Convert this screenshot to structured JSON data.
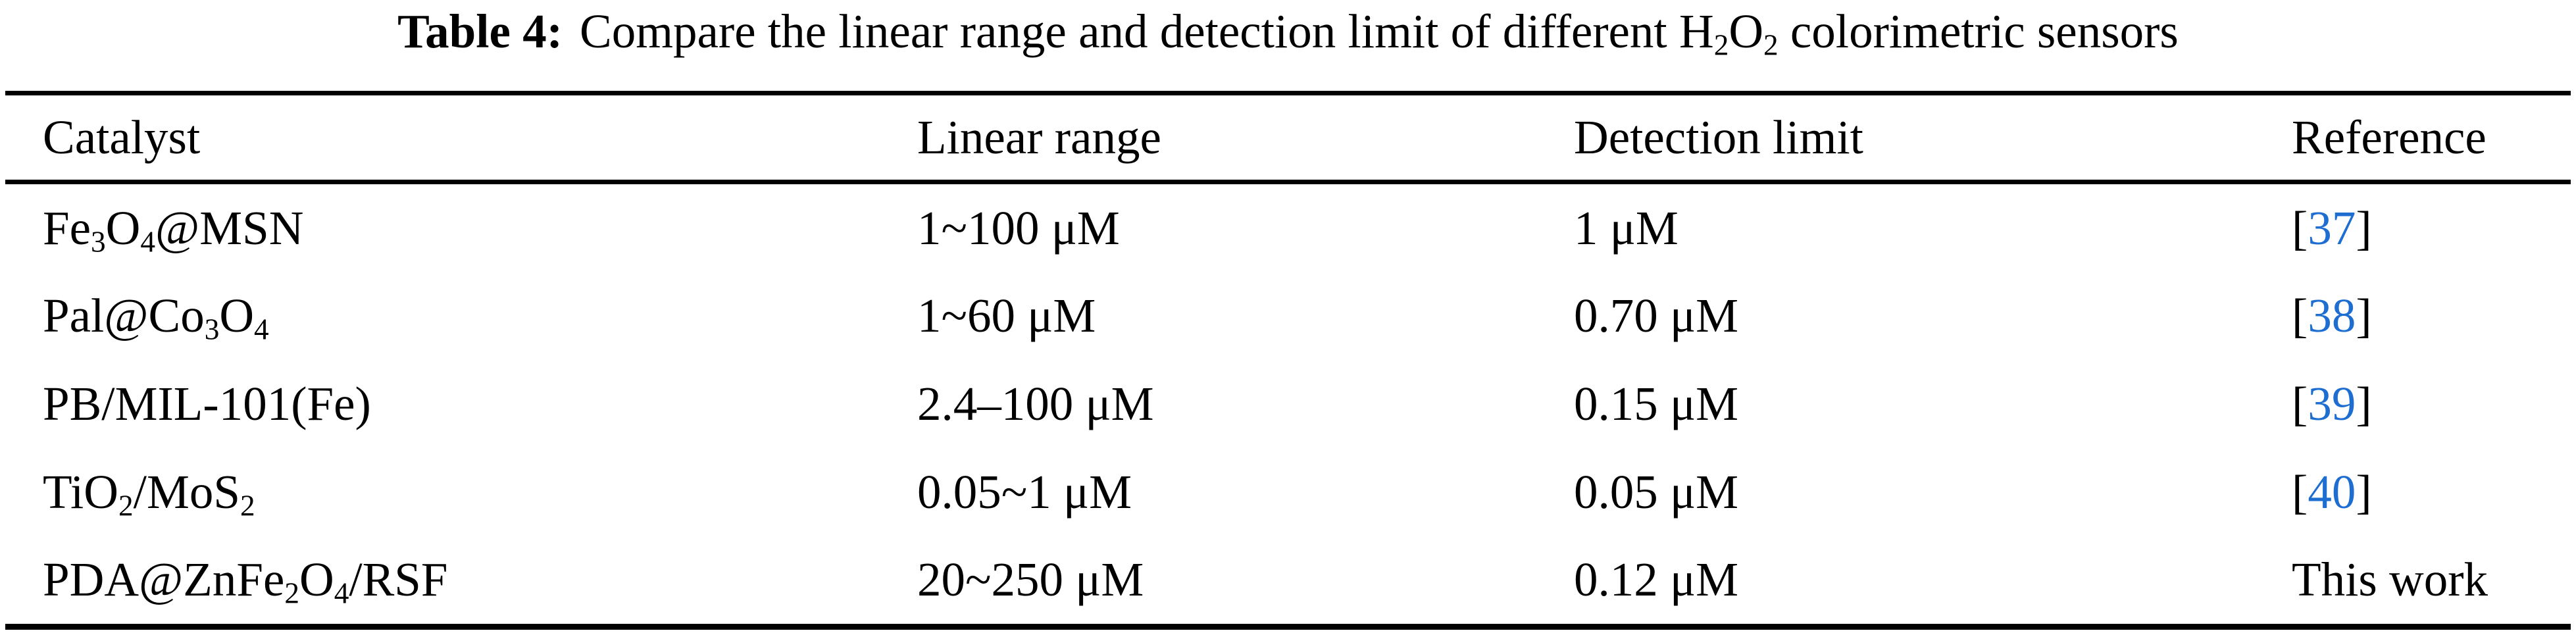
{
  "title": {
    "label": "Table 4:",
    "text": "Compare the linear range and detection limit of different H_2O_2 colorimetric sensors"
  },
  "colors": {
    "citation_blue": "#1e6ed2",
    "text": "#000000",
    "background": "#ffffff",
    "rule": "#000000"
  },
  "table": {
    "columns": [
      "Catalyst",
      "Linear range",
      "Detection limit",
      "Reference"
    ],
    "rows": [
      {
        "catalyst": "Fe_3O_4@MSN",
        "linear_range": "1~100 μM",
        "detection_limit": "1 μM",
        "reference": {
          "open": "[",
          "label": "37",
          "close": "]",
          "kind": "citation"
        }
      },
      {
        "catalyst": "Pal@Co_3O_4",
        "linear_range": "1~60 μM",
        "detection_limit": "0.70 μM",
        "reference": {
          "open": "[",
          "label": "38",
          "close": "]",
          "kind": "citation"
        }
      },
      {
        "catalyst": "PB/MIL-101(Fe)",
        "linear_range": "2.4–100 μM",
        "detection_limit": "0.15 μM",
        "reference": {
          "open": "[",
          "label": "39",
          "close": "]",
          "kind": "citation"
        }
      },
      {
        "catalyst": "TiO_2/MoS_2",
        "linear_range": "0.05~1 μM",
        "detection_limit": "0.05 μM",
        "reference": {
          "open": "[",
          "label": "40",
          "close": "]",
          "kind": "citation"
        }
      },
      {
        "catalyst": "PDA@ZnFe_2O_4/RSF",
        "linear_range": "20~250 μM",
        "detection_limit": "0.12 μM",
        "reference": {
          "label": "This work",
          "kind": "plain"
        }
      }
    ]
  }
}
